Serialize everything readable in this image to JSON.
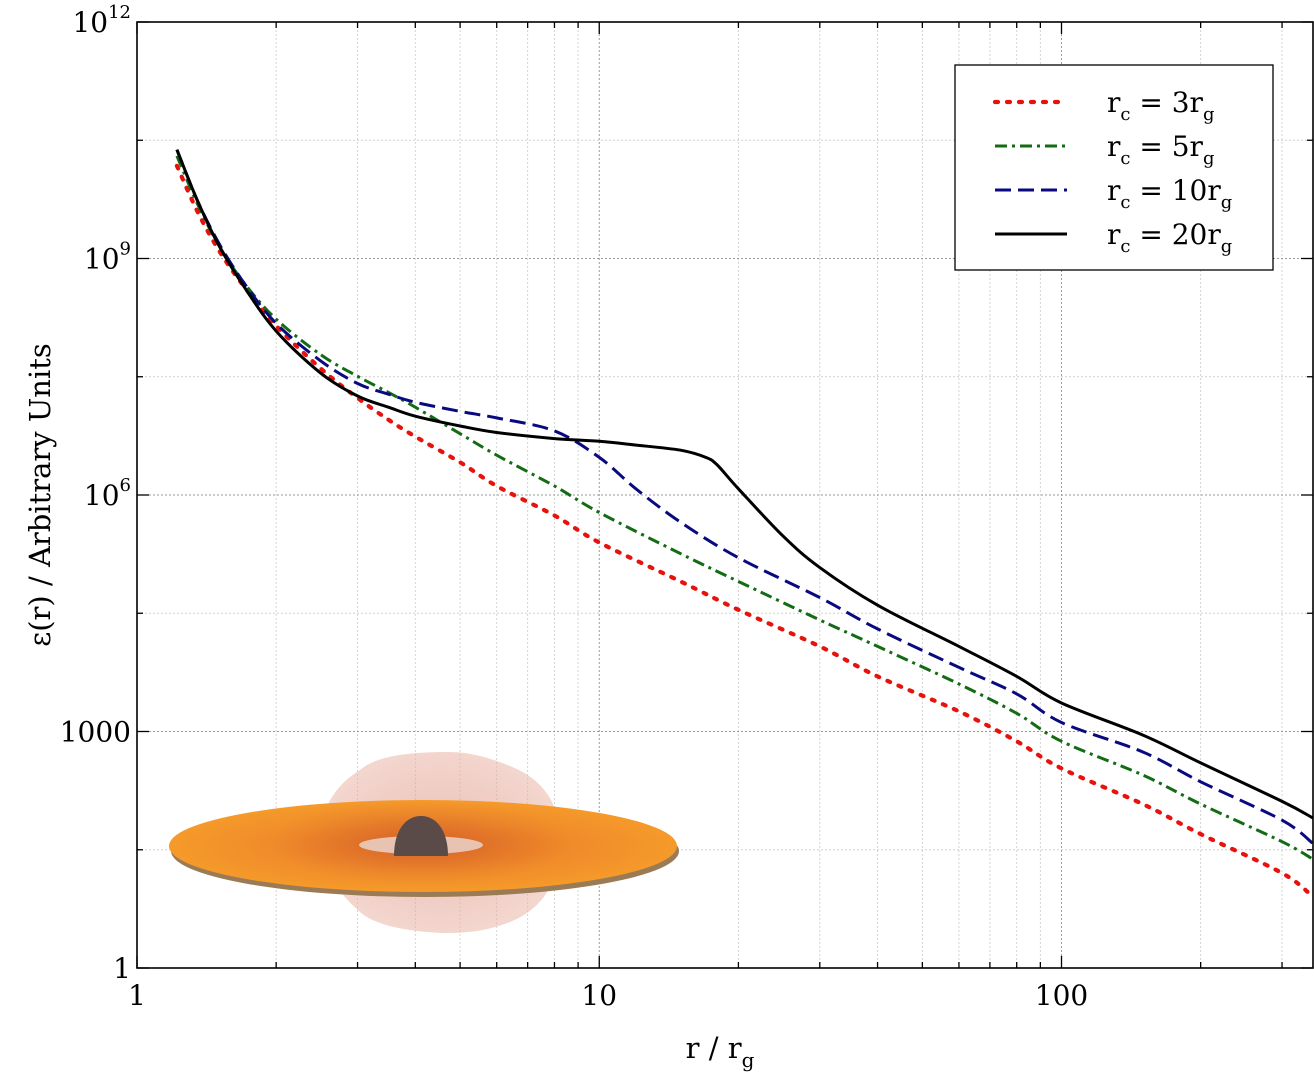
{
  "chart_data": {
    "type": "line",
    "title": "",
    "xlabel": "r / r",
    "xlabel_sub": "g",
    "ylabel": "ε(r) / Arbitrary Units",
    "x_scale": "log",
    "y_scale": "log",
    "xlim": [
      1,
      350
    ],
    "ylim": [
      1,
      1000000000000.0
    ],
    "x_ticks": [
      {
        "value": 1,
        "label": "1"
      },
      {
        "value": 10,
        "label": "10"
      },
      {
        "value": 100,
        "label": "100"
      }
    ],
    "y_ticks": [
      {
        "value": 1,
        "base": "1",
        "exp": ""
      },
      {
        "value": 1000,
        "base": "1000",
        "exp": ""
      },
      {
        "value": 1000000,
        "base": "10",
        "exp": "6"
      },
      {
        "value": 1000000000,
        "base": "10",
        "exp": "9"
      },
      {
        "value": 1000000000000,
        "base": "10",
        "exp": "12"
      }
    ],
    "grid": true,
    "legend_position": "top-right",
    "series": [
      {
        "name": "r_c = 3r_g",
        "label_main": "r",
        "label_sub1": "c",
        "label_mid": " = 3r",
        "label_sub2": "g",
        "color": "#e8120c",
        "style": "dotted",
        "x": [
          1.22,
          1.35,
          1.5,
          1.7,
          2.0,
          2.5,
          3.0,
          3.5,
          4.0,
          5.0,
          6.0,
          8.0,
          10,
          15,
          20,
          30,
          40,
          60,
          80,
          100,
          150,
          200,
          300,
          350
        ],
        "y": [
          15000000000.0,
          4000000000.0,
          1300000000.0,
          450000000.0,
          140000000.0,
          40000000.0,
          17000000.0,
          9000000.0,
          5500000.0,
          2600000.0,
          1300000.0,
          550000.0,
          250000.0,
          80000.0,
          35000.0,
          12000.0,
          5000.0,
          1800.0,
          750.0,
          340.0,
          120.0,
          50.0,
          16.0,
          8.0
        ]
      },
      {
        "name": "r_c = 5r_g",
        "label_main": "r",
        "label_sub1": "c",
        "label_mid": " = 5r",
        "label_sub2": "g",
        "color": "#136b13",
        "style": "dashdot",
        "x": [
          1.22,
          1.35,
          1.5,
          1.7,
          2.0,
          2.5,
          3.0,
          3.5,
          4.0,
          5.0,
          6.0,
          8.0,
          10,
          15,
          20,
          30,
          40,
          60,
          80,
          100,
          150,
          200,
          300,
          350
        ],
        "y": [
          20000000000.0,
          5000000000.0,
          1500000000.0,
          500000000.0,
          170000000.0,
          60000000.0,
          32000000.0,
          20000000.0,
          13000000.0,
          6000000.0,
          3200000.0,
          1300000.0,
          600000.0,
          180000.0,
          80000.0,
          26000.0,
          12000.0,
          4000.0,
          1700.0,
          750.0,
          280.0,
          120.0,
          40.0,
          24.0
        ]
      },
      {
        "name": "r_c = 10r_g",
        "label_main": "r",
        "label_sub1": "c",
        "label_mid": " = 10r",
        "label_sub2": "g",
        "color": "#0a0a80",
        "style": "dashed",
        "x": [
          1.22,
          1.35,
          1.5,
          1.7,
          2.0,
          2.5,
          3.0,
          3.5,
          4.0,
          5.0,
          6.0,
          8.0,
          10,
          12,
          15,
          20,
          30,
          40,
          60,
          80,
          100,
          150,
          200,
          300,
          350
        ],
        "y": [
          24000000000.0,
          5500000000.0,
          1600000000.0,
          500000000.0,
          150000000.0,
          50000000.0,
          26000000.0,
          19000000.0,
          15000000.0,
          11500000.0,
          9500000.0,
          6500000.0,
          3000000.0,
          1200000.0,
          450000.0,
          160000.0,
          50000.0,
          20000.0,
          6500.0,
          3000.0,
          1300.0,
          550.0,
          230.0,
          75.0,
          38.0
        ]
      },
      {
        "name": "r_c = 20r_g",
        "label_main": "r",
        "label_sub1": "c",
        "label_mid": " = 20r",
        "label_sub2": "g",
        "color": "#000000",
        "style": "solid",
        "x": [
          1.22,
          1.35,
          1.5,
          1.7,
          2.0,
          2.5,
          3.0,
          3.5,
          4.0,
          5.0,
          6.0,
          8.0,
          10,
          12,
          15,
          17,
          18,
          20,
          25,
          30,
          40,
          60,
          80,
          100,
          150,
          200,
          300,
          350
        ],
        "y": [
          24000000000.0,
          5500000000.0,
          1500000000.0,
          450000000.0,
          120000000.0,
          35000000.0,
          18000000.0,
          13000000.0,
          10000000.0,
          7500000.0,
          6200000.0,
          5200000.0,
          4800000.0,
          4300000.0,
          3700000.0,
          3000000.0,
          2400000.0,
          1200000.0,
          300000.0,
          120000.0,
          40000.0,
          12000.0,
          5000.0,
          2300.0,
          900.0,
          400.0,
          130.0,
          80.0
        ]
      }
    ]
  }
}
